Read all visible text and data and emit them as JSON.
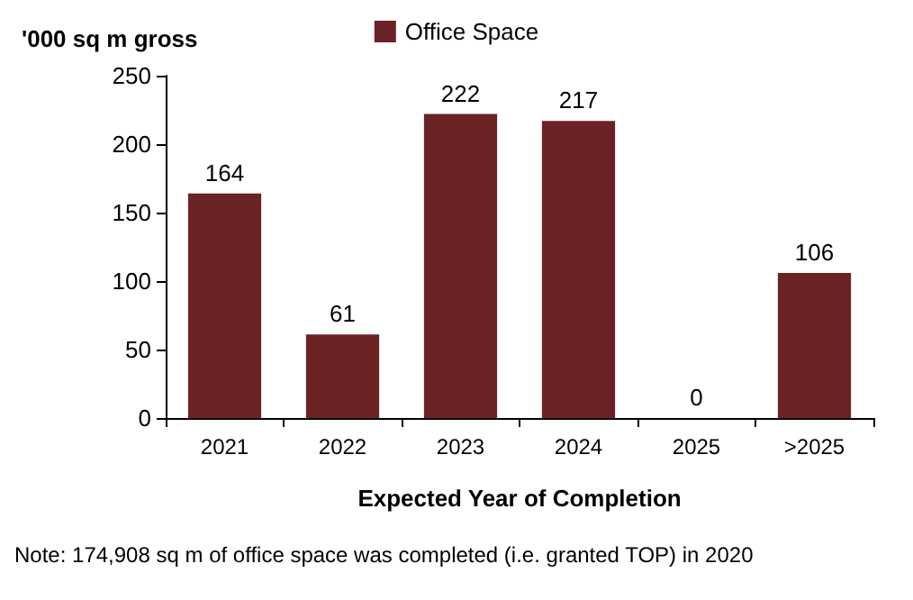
{
  "chart_data": {
    "type": "bar",
    "ylabel": "'000 sq m gross",
    "xlabel": "Expected Year of Completion",
    "categories": [
      "2021",
      "2022",
      "2023",
      "2024",
      "2025",
      ">2025"
    ],
    "series": [
      {
        "name": "Office Space",
        "color": "#6b2225",
        "values": [
          164,
          61,
          222,
          217,
          0,
          106
        ]
      }
    ],
    "ylim": [
      0,
      250
    ],
    "yticks": [
      0,
      50,
      100,
      150,
      200,
      250
    ],
    "grid": false,
    "legend": "top",
    "data_labels": true,
    "annotations": [
      "Note: 174,908 sq m of office space was completed (i.e. granted TOP) in 2020"
    ]
  }
}
